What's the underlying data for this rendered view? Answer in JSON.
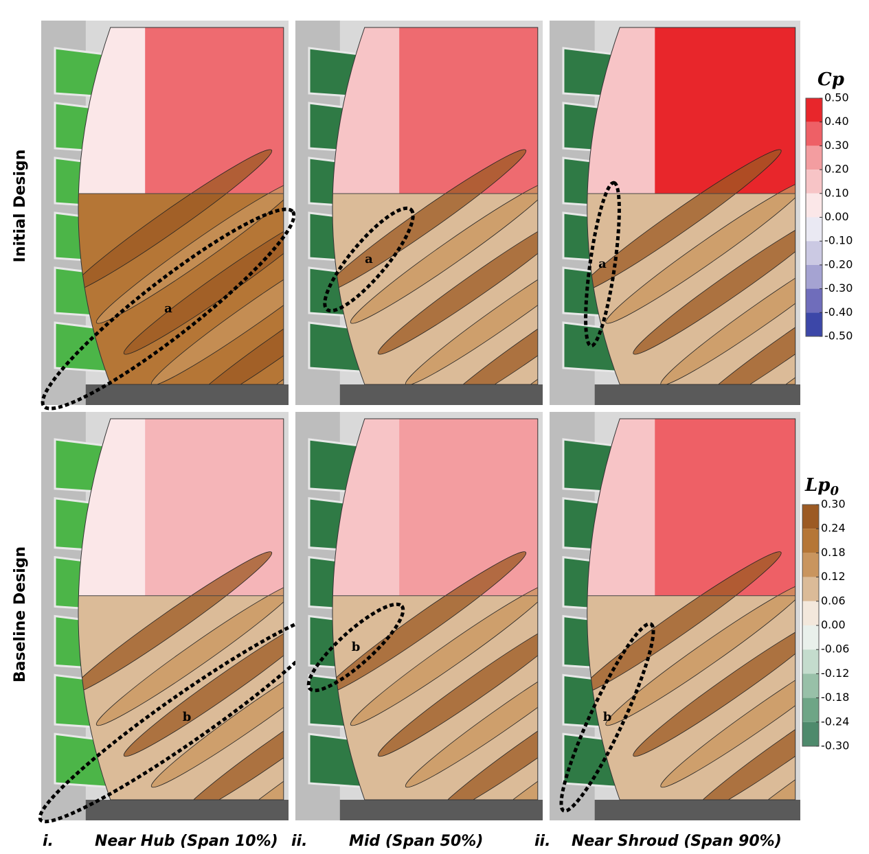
{
  "row_labels": [
    "Initial Design",
    "Baseline Design"
  ],
  "captions": [
    {
      "index": "i.",
      "text": "Near Hub (Span 10%)"
    },
    {
      "index": "ii.",
      "text": "Mid (Span 50%)"
    },
    {
      "index": "ii.",
      "text": "Near Shroud (Span 90%)"
    }
  ],
  "annotations": [
    [
      "a",
      "a",
      "a"
    ],
    [
      "b",
      "b",
      "b"
    ]
  ],
  "colorbars": [
    {
      "title": "Cp",
      "ticks": [
        "0.50",
        "0.40",
        "0.30",
        "0.20",
        "0.10",
        "0.00",
        "-0.10",
        "-0.20",
        "-0.30",
        "-0.40",
        "-0.50"
      ],
      "colors": [
        "#e8262b",
        "#ee6066",
        "#f39da0",
        "#f7c4c6",
        "#fbe7e8",
        "#eae9f3",
        "#cbc9e3",
        "#a5a3d2",
        "#6f6dbb",
        "#3c47a8"
      ]
    },
    {
      "title": "Lp",
      "subscript": "0",
      "ticks": [
        "0.30",
        "0.24",
        "0.18",
        "0.12",
        "0.06",
        "0.00",
        "-0.06",
        "-0.12",
        "-0.18",
        "-0.24",
        "-0.30"
      ],
      "colors": [
        "#9c5a23",
        "#b57636",
        "#c9955e",
        "#dbbb98",
        "#f3e8dc",
        "#e9f0eb",
        "#c4dccd",
        "#98c0a8",
        "#6ea586",
        "#4e8a6c"
      ]
    }
  ]
}
